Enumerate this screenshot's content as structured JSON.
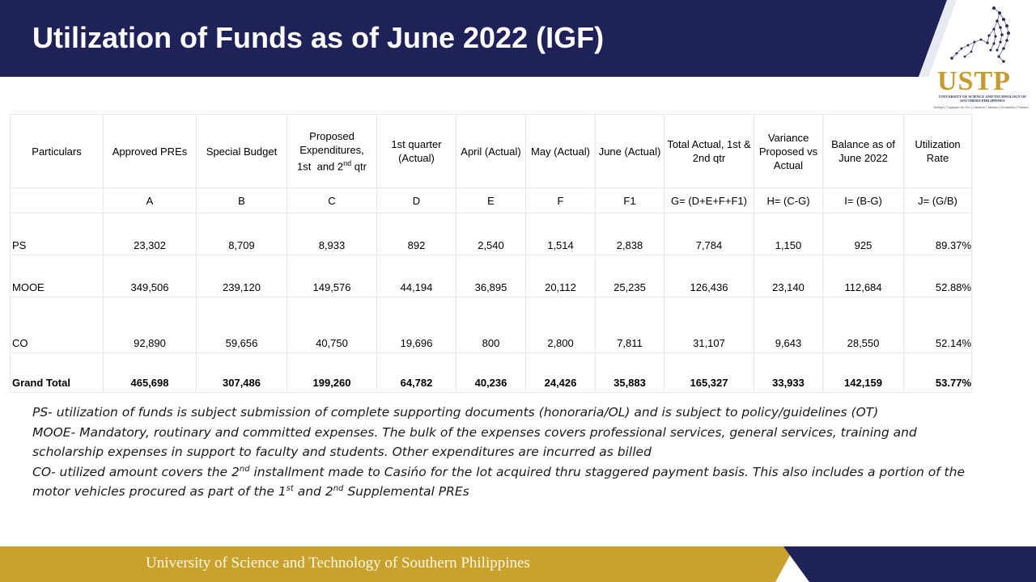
{
  "header": {
    "title": "Utilization of Funds as of June 2022 (IGF)",
    "bar_color": "#1f2159",
    "accent_color": "#e8eaf3"
  },
  "logo": {
    "wordmark": "USTP",
    "subtitle": "UNIVERSITY OF SCIENCE AND TECHNOLOGY OF SOUTHERN PHILIPPINES",
    "campuses": "Alubijid | Cagayan de Oro | Claveria | Jasaan | Oroquieta | Panaon",
    "icon": "constellation-icon",
    "color": "#c79a2c"
  },
  "table": {
    "headers": [
      "Particulars",
      "Approved PREs",
      "Special Budget",
      "Proposed Expenditures, 1st  and 2nd qtr",
      "1st quarter (Actual)",
      "April (Actual)",
      "May (Actual)",
      "June (Actual)",
      "Total Actual, 1st & 2nd qtr",
      "Variance Proposed vs Actual",
      "Balance as of June 2022",
      "Utilization Rate"
    ],
    "letters": [
      "",
      "A",
      "B",
      "C",
      "D",
      "E",
      "F",
      "F1",
      "G= (D+E+F+F1)",
      "H= (C-G)",
      "I= (B-G)",
      "J= (G/B)"
    ],
    "rows": [
      {
        "label": "PS",
        "cells": [
          "23,302",
          "8,709",
          "8,933",
          "892",
          "2,540",
          "1,514",
          "2,838",
          "7,784",
          "1,150",
          "925",
          "89.37%"
        ]
      },
      {
        "label": "MOOE",
        "cells": [
          "349,506",
          "239,120",
          "149,576",
          "44,194",
          "36,895",
          "20,112",
          "25,235",
          "126,436",
          "23,140",
          "112,684",
          "52.88%"
        ]
      },
      {
        "label": "CO",
        "cells": [
          "92,890",
          "59,656",
          "40,750",
          "19,696",
          "800",
          "2,800",
          "7,811",
          "31,107",
          "9,643",
          "28,550",
          "52.14%"
        ]
      },
      {
        "label": "Grand Total",
        "cells": [
          "465,698",
          "307,486",
          "199,260",
          "64,782",
          "40,236",
          "24,426",
          "35,883",
          "165,327",
          "33,933",
          "142,159",
          "53.77%"
        ]
      }
    ]
  },
  "notes": {
    "ps": "PS- utilization of funds is subject submission of complete supporting documents (honoraria/OL) and is subject to policy/guidelines (OT)",
    "mooe": "MOOE- Mandatory, routinary and committed expenses. The bulk of the expenses covers professional services, general services, training and scholarship expenses in support to faculty and students. Other expenditures are incurred as billed",
    "co_part1": "CO- utilized amount covers the 2",
    "co_sup1": "nd",
    "co_part2": " installment made to Casińo for the lot acquired thru staggered payment basis. This also includes a portion of the motor vehicles procured as part of the 1",
    "co_sup2": "st",
    "co_part3": " and 2",
    "co_sup3": "nd",
    "co_part4": " Supplemental PREs"
  },
  "footer": {
    "text": "University of Science and Technology of Southern Philippines",
    "gold_color": "#c9a22e",
    "navy_color": "#1f2159"
  }
}
